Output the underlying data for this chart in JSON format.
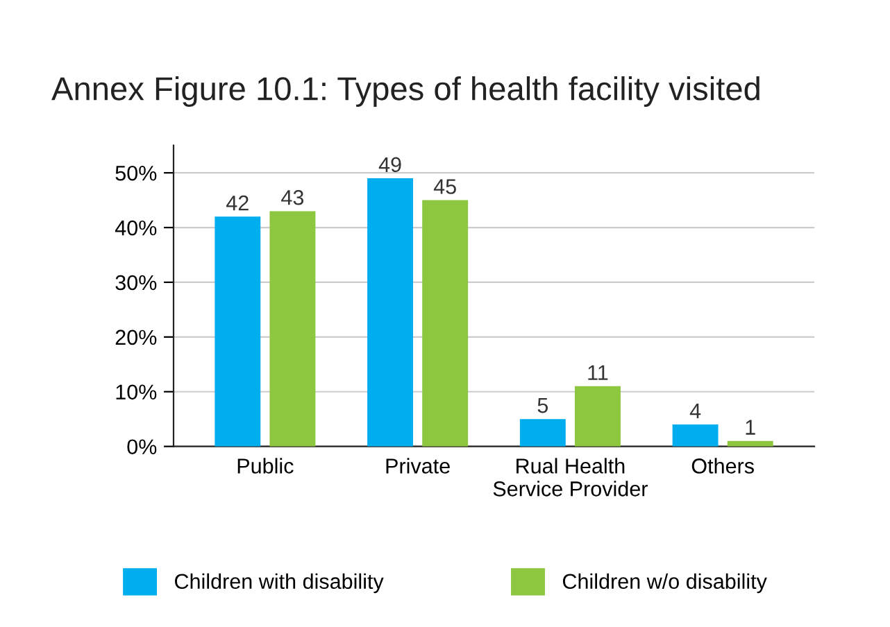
{
  "chart_data": {
    "type": "bar",
    "title": "Annex Figure 10.1: Types of health facility visited",
    "categories": [
      "Public",
      "Private",
      "Rual Health\nService Provider",
      "Others"
    ],
    "series": [
      {
        "name": "Children with disability",
        "color": "#00aeef",
        "values": [
          42,
          49,
          5,
          4
        ]
      },
      {
        "name": "Children w/o disability",
        "color": "#8dc63f",
        "values": [
          43,
          45,
          11,
          1
        ]
      }
    ],
    "ylim": [
      0,
      55
    ],
    "yticks": [
      {
        "value": 0,
        "label": "0%"
      },
      {
        "value": 10,
        "label": "10%"
      },
      {
        "value": 20,
        "label": "20%"
      },
      {
        "value": 30,
        "label": "30%"
      },
      {
        "value": 40,
        "label": "40%"
      },
      {
        "value": 50,
        "label": "50%"
      }
    ],
    "grid": "y",
    "legend": "bottom",
    "data_labels": true
  }
}
